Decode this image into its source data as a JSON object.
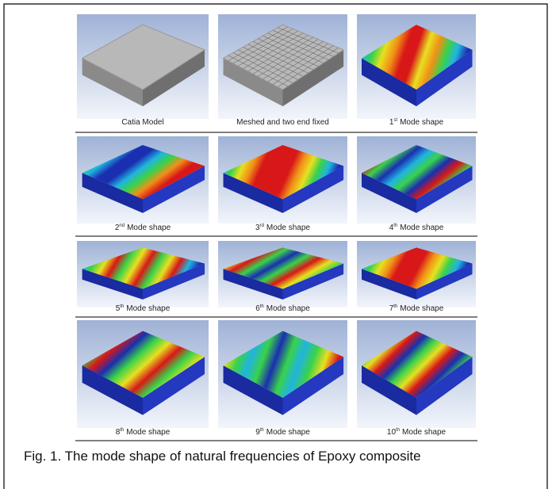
{
  "figure": {
    "panels": [
      {
        "label": "Catia Model"
      },
      {
        "label": "Meshed and two end fixed"
      },
      {
        "ordinal": "1",
        "suffix": "st",
        "label": "Mode shape"
      },
      {
        "ordinal": "2",
        "suffix": "nd",
        "label": "Mode shape"
      },
      {
        "ordinal": "3",
        "suffix": "rd",
        "label": "Mode shape"
      },
      {
        "ordinal": "4",
        "suffix": "th",
        "label": "Mode shape"
      },
      {
        "ordinal": "5",
        "suffix": "th",
        "label": "Mode shape"
      },
      {
        "ordinal": "6",
        "suffix": "th",
        "label": "Mode shape"
      },
      {
        "ordinal": "7",
        "suffix": "th",
        "label": "Mode shape"
      },
      {
        "ordinal": "8",
        "suffix": "th",
        "label": "Mode shape"
      },
      {
        "ordinal": "9",
        "suffix": "th",
        "label": "Mode shape"
      },
      {
        "ordinal": "10",
        "suffix": "th",
        "label": "Mode shape"
      }
    ],
    "caption": "Fig. 1. The mode shape of natural frequencies of Epoxy composite"
  }
}
